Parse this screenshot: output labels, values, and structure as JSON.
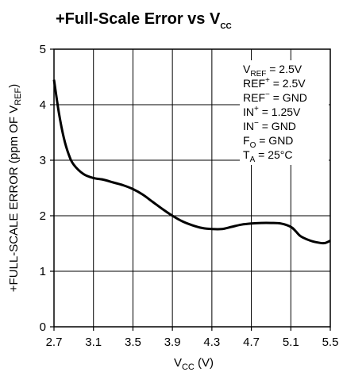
{
  "chart_data": {
    "type": "line",
    "title": {
      "main": "+Full-Scale Error vs V",
      "sub": "CC"
    },
    "xlabel": {
      "main": "V",
      "sub": "CC",
      "tail": " (V)"
    },
    "ylabel": {
      "main": "+FULL-SCALE ERROR (ppm OF V",
      "sub": "REF",
      "tail": ")"
    },
    "xlim": [
      2.7,
      5.5
    ],
    "ylim": [
      0,
      5
    ],
    "xticks": [
      "2.7",
      "3.1",
      "3.5",
      "3.9",
      "4.3",
      "4.7",
      "5.1",
      "5.5"
    ],
    "yticks": [
      "0",
      "1",
      "2",
      "3",
      "4",
      "5"
    ],
    "grid": true,
    "annotations": [
      {
        "main": "V",
        "sub": "REF",
        "sup": "",
        "tail": " = 2.5V"
      },
      {
        "main": "REF",
        "sub": "",
        "sup": "+",
        "tail": " = 2.5V"
      },
      {
        "main": "REF",
        "sub": "",
        "sup": "−",
        "tail": " = GND"
      },
      {
        "main": "IN",
        "sub": "",
        "sup": "+",
        "tail": " = 1.25V"
      },
      {
        "main": "IN",
        "sub": "",
        "sup": "−",
        "tail": " = GND"
      },
      {
        "main": "F",
        "sub": "O",
        "sup": "",
        "tail": " = GND"
      },
      {
        "main": "T",
        "sub": "A",
        "sup": "",
        "tail": " = 25°C"
      }
    ],
    "series": [
      {
        "x": [
          2.7,
          2.75,
          2.8,
          2.85,
          2.9,
          3.0,
          3.1,
          3.2,
          3.3,
          3.4,
          3.5,
          3.6,
          3.7,
          3.8,
          3.9,
          4.0,
          4.1,
          4.2,
          4.3,
          4.4,
          4.5,
          4.6,
          4.7,
          4.8,
          4.9,
          5.0,
          5.1,
          5.15,
          5.2,
          5.3,
          5.4,
          5.45,
          5.5
        ],
        "y": [
          4.45,
          3.85,
          3.4,
          3.1,
          2.92,
          2.75,
          2.68,
          2.65,
          2.6,
          2.55,
          2.48,
          2.38,
          2.25,
          2.12,
          2.0,
          1.9,
          1.83,
          1.78,
          1.76,
          1.76,
          1.8,
          1.84,
          1.86,
          1.87,
          1.87,
          1.86,
          1.8,
          1.72,
          1.63,
          1.55,
          1.51,
          1.51,
          1.55
        ]
      }
    ]
  }
}
